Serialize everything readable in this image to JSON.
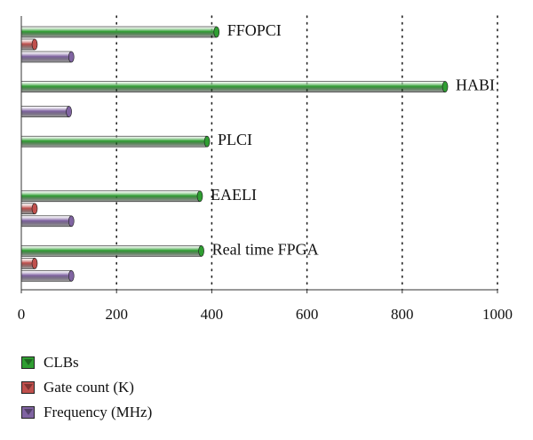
{
  "chart_data": {
    "type": "bar",
    "orientation": "horizontal",
    "categories": [
      "FFOPCI",
      "HABI",
      "PLCI",
      "EAELI",
      "Real time FPGA"
    ],
    "series": [
      {
        "name": "CLBs",
        "color": "#2f9e32",
        "values": [
          410,
          890,
          390,
          375,
          378
        ]
      },
      {
        "name": "Gate count (K)",
        "color": "#c0504d",
        "values": [
          28,
          null,
          null,
          28,
          28
        ]
      },
      {
        "name": "Frequency (MHz)",
        "color": "#8064a2",
        "values": [
          105,
          100,
          null,
          105,
          105
        ]
      }
    ],
    "xlim": [
      0,
      1000
    ],
    "xticks": [
      0,
      200,
      400,
      600,
      800,
      1000
    ],
    "grid": "vertical dotted",
    "legend_position": "bottom-left"
  }
}
